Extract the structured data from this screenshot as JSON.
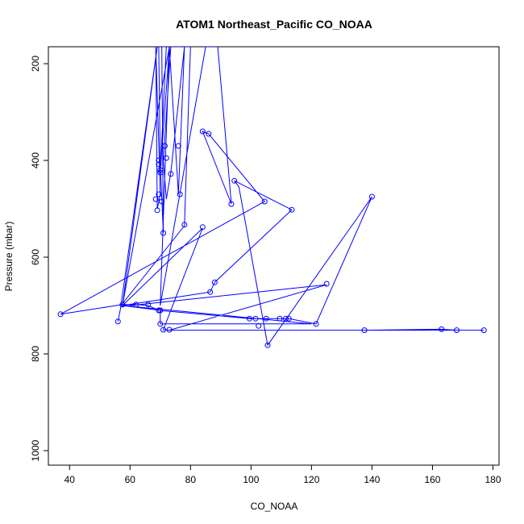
{
  "chart_data": {
    "type": "line",
    "title": "ATOM1 Northeast_Pacific CO_NOAA",
    "xlabel": "CO_NOAA",
    "ylabel": "Pressure (mbar)",
    "xlim": [
      33,
      182
    ],
    "ylim": [
      1030,
      165
    ],
    "y_axis_reversed": true,
    "x_ticks": [
      40,
      60,
      80,
      100,
      120,
      140,
      160,
      180
    ],
    "y_ticks": [
      200,
      400,
      600,
      800,
      1000
    ],
    "x_tick_labels": [
      "40",
      "60",
      "80",
      "100",
      "120",
      "140",
      "160",
      "180"
    ],
    "y_tick_labels": [
      "200",
      "400",
      "600",
      "800",
      "1000"
    ],
    "grid": false,
    "legend": "none",
    "series_color": "#0000ff",
    "line_points": [
      [
        68.5,
        165
      ],
      [
        69.0,
        500
      ],
      [
        70.0,
        470
      ],
      [
        68.5,
        165
      ],
      [
        69.5,
        165
      ],
      [
        70.0,
        410
      ],
      [
        71.0,
        550
      ],
      [
        70.5,
        165
      ],
      [
        72.0,
        165
      ],
      [
        70.0,
        425
      ],
      [
        73.0,
        165
      ],
      [
        73.5,
        165
      ],
      [
        71.0,
        400
      ],
      [
        72.0,
        480
      ],
      [
        73.5,
        425
      ],
      [
        78.0,
        165
      ],
      [
        76.0,
        470
      ],
      [
        73.0,
        165
      ],
      [
        74.0,
        165
      ],
      [
        80.0,
        165
      ],
      [
        78.0,
        535
      ],
      [
        57.0,
        700
      ],
      [
        69.0,
        165
      ],
      [
        57.5,
        700
      ],
      [
        73.0,
        165
      ],
      [
        70.0,
        700
      ],
      [
        85.0,
        165
      ],
      [
        89.0,
        165
      ],
      [
        93.5,
        490
      ],
      [
        84.0,
        340
      ],
      [
        86.0,
        345
      ],
      [
        104.5,
        485
      ],
      [
        37.0,
        718
      ],
      [
        57.5,
        698
      ],
      [
        62.0,
        698
      ],
      [
        66.0,
        700
      ],
      [
        69.5,
        710
      ],
      [
        99.5,
        727
      ],
      [
        101.5,
        727
      ],
      [
        105.0,
        727
      ],
      [
        109.5,
        727
      ],
      [
        111.5,
        727
      ],
      [
        112.5,
        727
      ],
      [
        121.5,
        738
      ],
      [
        140.0,
        475
      ],
      [
        135.0,
        520
      ],
      [
        105.5,
        782
      ],
      [
        96.0,
        455
      ],
      [
        94.5,
        442
      ],
      [
        113.5,
        502
      ],
      [
        88.0,
        652
      ],
      [
        86.5,
        672
      ],
      [
        57.5,
        700
      ],
      [
        70.0,
        710
      ],
      [
        70.0,
        738
      ],
      [
        120.0,
        738
      ],
      [
        57.5,
        700
      ],
      [
        84.0,
        540
      ],
      [
        71.0,
        750
      ],
      [
        73.0,
        751
      ],
      [
        137.5,
        751
      ],
      [
        163.0,
        749
      ],
      [
        168.0,
        751
      ],
      [
        177.0,
        751
      ],
      [
        73.0,
        751
      ],
      [
        125.0,
        657
      ],
      [
        57.0,
        702
      ],
      [
        56.0,
        733
      ]
    ],
    "markers": [
      [
        84.0,
        340
      ],
      [
        86.0,
        345
      ],
      [
        71.5,
        370
      ],
      [
        76.0,
        370
      ],
      [
        72.0,
        395
      ],
      [
        69.5,
        400
      ],
      [
        69.5,
        408
      ],
      [
        70.0,
        420
      ],
      [
        70.0,
        425
      ],
      [
        73.5,
        428
      ],
      [
        94.5,
        442
      ],
      [
        69.5,
        470
      ],
      [
        76.5,
        470
      ],
      [
        140.0,
        475
      ],
      [
        68.5,
        480
      ],
      [
        70.5,
        485
      ],
      [
        104.5,
        485
      ],
      [
        93.5,
        490
      ],
      [
        69.0,
        503
      ],
      [
        113.5,
        502
      ],
      [
        78.0,
        533
      ],
      [
        84.0,
        538
      ],
      [
        71.0,
        550
      ],
      [
        88.0,
        652
      ],
      [
        125.0,
        655
      ],
      [
        86.5,
        672
      ],
      [
        57.5,
        698
      ],
      [
        62.0,
        698
      ],
      [
        66.0,
        698
      ],
      [
        69.5,
        710
      ],
      [
        70.0,
        710
      ],
      [
        37.0,
        718
      ],
      [
        99.5,
        727
      ],
      [
        101.5,
        727
      ],
      [
        105.0,
        727
      ],
      [
        109.5,
        727
      ],
      [
        111.5,
        727
      ],
      [
        112.5,
        727
      ],
      [
        56.0,
        733
      ],
      [
        70.0,
        738
      ],
      [
        121.5,
        738
      ],
      [
        102.5,
        742
      ],
      [
        71.0,
        750
      ],
      [
        73.0,
        750
      ],
      [
        137.5,
        751
      ],
      [
        163.0,
        749
      ],
      [
        168.0,
        751
      ],
      [
        177.0,
        751
      ],
      [
        105.5,
        782
      ]
    ]
  }
}
